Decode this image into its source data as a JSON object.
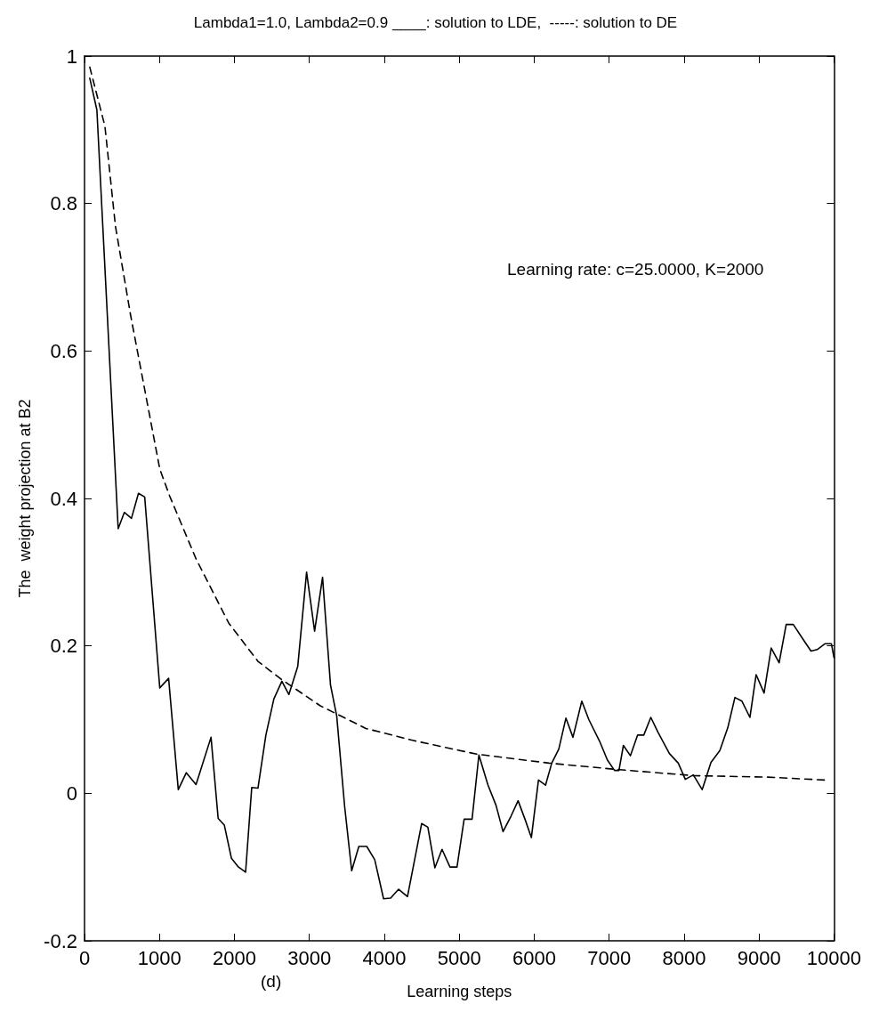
{
  "chart_data": {
    "type": "line",
    "title": "Lambda1=1.0, Lambda2=0.9 ____: solution to LDE,  -----: solution to DE",
    "xlabel": "Learning steps",
    "ylabel": "The  weight projection at B2",
    "annotations": [
      "Learning rate: c=25.0000, K=2000",
      "(d)"
    ],
    "series": [
      {
        "color": "#000000",
        "line_style": "solid",
        "x": [
          70,
          165,
          449,
          531,
          626,
          720,
          803,
          1004,
          1122,
          1251,
          1358,
          1488,
          1688,
          1783,
          1865,
          1960,
          2054,
          2149,
          2231,
          2314,
          2420,
          2526,
          2633,
          2727,
          2845,
          2963,
          3070,
          3176,
          3282,
          3365,
          3471,
          3565,
          3660,
          3766,
          3872,
          3990,
          4085,
          4191,
          4309,
          4498,
          4581,
          4675,
          4770,
          4876,
          4970,
          5065,
          5171,
          5262,
          5384,
          5490,
          5584,
          5690,
          5785,
          5880,
          5962,
          6057,
          6151,
          6234,
          6328,
          6423,
          6517,
          6635,
          6729,
          6871,
          6977,
          7072,
          7131,
          7190,
          7284,
          7379,
          7462,
          7556,
          7651,
          7804,
          7922,
          8016,
          8123,
          8241,
          8359,
          8477,
          8583,
          8678,
          8772,
          8878,
          8961,
          9067,
          9162,
          9268,
          9362,
          9457,
          9587,
          9693,
          9776,
          9882,
          9965,
          10000
        ],
        "values": [
          0.97,
          0.927,
          0.359,
          0.381,
          0.373,
          0.407,
          0.402,
          0.143,
          0.156,
          0.005,
          0.028,
          0.012,
          0.076,
          -0.034,
          -0.043,
          -0.088,
          -0.1,
          -0.107,
          0.008,
          0.007,
          0.079,
          0.128,
          0.152,
          0.134,
          0.172,
          0.3,
          0.22,
          0.293,
          0.147,
          0.105,
          -0.018,
          -0.105,
          -0.072,
          -0.072,
          -0.09,
          -0.143,
          -0.142,
          -0.13,
          -0.14,
          -0.041,
          -0.046,
          -0.101,
          -0.076,
          -0.1,
          -0.1,
          -0.035,
          -0.035,
          0.052,
          0.011,
          -0.016,
          -0.052,
          -0.031,
          -0.01,
          -0.036,
          -0.06,
          0.018,
          0.011,
          0.041,
          0.06,
          0.102,
          0.076,
          0.125,
          0.1,
          0.071,
          0.045,
          0.031,
          0.031,
          0.065,
          0.051,
          0.079,
          0.079,
          0.103,
          0.083,
          0.054,
          0.041,
          0.019,
          0.025,
          0.005,
          0.042,
          0.058,
          0.089,
          0.13,
          0.125,
          0.103,
          0.161,
          0.136,
          0.197,
          0.177,
          0.229,
          0.229,
          0.209,
          0.193,
          0.195,
          0.203,
          0.203,
          0.184
        ]
      },
      {
        "color": "#000000",
        "line_style": "dashed",
        "x": [
          70,
          272,
          413,
          614,
          1004,
          1133,
          1488,
          1924,
          2314,
          2621,
          3141,
          3754,
          4415,
          5242,
          6198,
          7143,
          8123,
          9115,
          9882
        ],
        "values": [
          0.985,
          0.905,
          0.769,
          0.649,
          0.44,
          0.404,
          0.318,
          0.231,
          0.179,
          0.155,
          0.119,
          0.088,
          0.071,
          0.053,
          0.041,
          0.032,
          0.024,
          0.022,
          0.018
        ]
      }
    ],
    "xlim": [
      0,
      10000
    ],
    "xticks": [
      0,
      1000,
      2000,
      3000,
      4000,
      5000,
      6000,
      7000,
      8000,
      9000,
      10000
    ],
    "ylim": [
      -0.2,
      1
    ],
    "yticks": [
      -0.2,
      0,
      0.2,
      0.4,
      0.6,
      0.8,
      1
    ],
    "grid": false,
    "marker": "none"
  }
}
